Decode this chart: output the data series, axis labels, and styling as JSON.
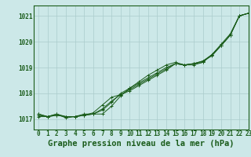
{
  "title": "Graphe pression niveau de la mer (hPa)",
  "background_color": "#cce8e8",
  "plot_bg_color": "#cce8e8",
  "grid_color": "#aacccc",
  "line_color": "#1a5c1a",
  "xlim": [
    -0.5,
    23
  ],
  "ylim": [
    1016.6,
    1021.4
  ],
  "yticks": [
    1017,
    1018,
    1019,
    1020,
    1021
  ],
  "xticks": [
    0,
    1,
    2,
    3,
    4,
    5,
    6,
    7,
    8,
    9,
    10,
    11,
    12,
    13,
    14,
    15,
    16,
    17,
    18,
    19,
    20,
    21,
    22,
    23
  ],
  "series": [
    [
      1017.2,
      1017.1,
      1017.2,
      1017.1,
      1017.1,
      1017.2,
      1017.2,
      1017.2,
      1017.5,
      1017.9,
      1018.2,
      1018.45,
      1018.7,
      1018.9,
      1019.1,
      1019.2,
      1019.1,
      1019.1,
      1019.2,
      1019.5,
      1019.9,
      1020.3,
      1021.0,
      1021.1
    ],
    [
      1017.2,
      1017.1,
      1017.2,
      1017.05,
      1017.1,
      1017.15,
      1017.2,
      1017.35,
      1017.65,
      1018.0,
      1018.2,
      1018.4,
      1018.6,
      1018.8,
      1019.0,
      1019.15,
      1019.1,
      1019.15,
      1019.25,
      1019.5,
      1019.85,
      1020.25,
      1021.0,
      1021.1
    ],
    [
      1017.15,
      1017.1,
      1017.15,
      1017.1,
      1017.1,
      1017.15,
      1017.2,
      1017.4,
      1017.7,
      1017.95,
      1018.15,
      1018.35,
      1018.55,
      1018.75,
      1018.95,
      1019.15,
      1019.1,
      1019.15,
      1019.2,
      1019.5,
      1019.85,
      1020.25,
      1021.0,
      1021.1
    ],
    [
      1017.1,
      1017.1,
      1017.15,
      1017.1,
      1017.1,
      1017.15,
      1017.25,
      1017.55,
      1017.85,
      1017.95,
      1018.1,
      1018.3,
      1018.5,
      1018.7,
      1018.9,
      1019.15,
      1019.1,
      1019.15,
      1019.25,
      1019.45,
      1019.85,
      1020.25,
      1021.0,
      1021.1
    ]
  ],
  "tick_fontsize": 5.5,
  "title_fontsize": 7.5
}
